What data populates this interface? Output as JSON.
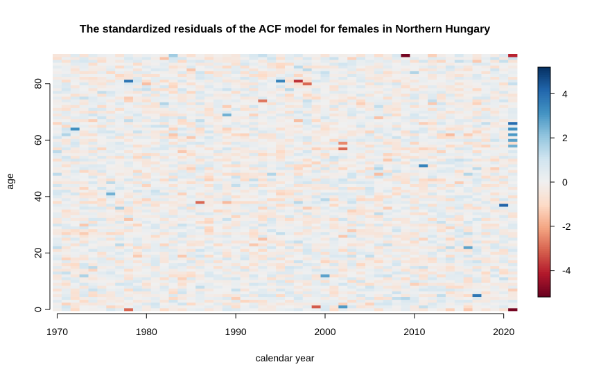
{
  "chart_data": {
    "type": "heatmap",
    "title": "The standardized residuals of the ACF model for females in Northern Hungary",
    "xlabel": "calendar year",
    "ylabel": "age",
    "x_range": [
      1970,
      2021
    ],
    "y_range": [
      0,
      90
    ],
    "xlim": [
      1969.5,
      2021.5
    ],
    "ylim": [
      -0.5,
      90.5
    ],
    "x_ticks": [
      1970,
      1980,
      1990,
      2000,
      2010,
      2020
    ],
    "y_ticks": [
      0,
      20,
      40,
      60,
      80
    ],
    "colorbar": {
      "range": [
        -5.2,
        5.2
      ],
      "ticks": [
        -4,
        -2,
        0,
        2,
        4
      ],
      "palette": [
        "#67001f",
        "#b2182b",
        "#d6604d",
        "#f4a582",
        "#fddbc7",
        "#f0f0f0",
        "#d1e5f0",
        "#92c5de",
        "#4393c3",
        "#2166ac",
        "#053061"
      ]
    },
    "notable_cells": [
      {
        "year": 2009,
        "age": 90,
        "value": -5.0
      },
      {
        "year": 2021,
        "age": 90,
        "value": -4.0
      },
      {
        "year": 2021,
        "age": 0,
        "value": -5.0
      },
      {
        "year": 1978,
        "age": 0,
        "value": -3.0
      },
      {
        "year": 1972,
        "age": 64,
        "value": 3.2
      },
      {
        "year": 1978,
        "age": 81,
        "value": 3.8
      },
      {
        "year": 1995,
        "age": 81,
        "value": 3.5
      },
      {
        "year": 1997,
        "age": 81,
        "value": -3.8
      },
      {
        "year": 1998,
        "age": 80,
        "value": -3.0
      },
      {
        "year": 2002,
        "age": 57,
        "value": -3.0
      },
      {
        "year": 2002,
        "age": 59,
        "value": -2.5
      },
      {
        "year": 2011,
        "age": 51,
        "value": 3.5
      },
      {
        "year": 2017,
        "age": 5,
        "value": 3.8
      },
      {
        "year": 2020,
        "age": 37,
        "value": 4.2
      },
      {
        "year": 2016,
        "age": 22,
        "value": 2.8
      },
      {
        "year": 2021,
        "age": 66,
        "value": 4.0
      },
      {
        "year": 2021,
        "age": 64,
        "value": 3.2
      },
      {
        "year": 2021,
        "age": 62,
        "value": 3.0
      },
      {
        "year": 2021,
        "age": 60,
        "value": 2.8
      },
      {
        "year": 2021,
        "age": 58,
        "value": 2.5
      },
      {
        "year": 2002,
        "age": 1,
        "value": 3.0
      },
      {
        "year": 2000,
        "age": 12,
        "value": 2.8
      },
      {
        "year": 1999,
        "age": 1,
        "value": -3.2
      },
      {
        "year": 1976,
        "age": 41,
        "value": 2.5
      },
      {
        "year": 1986,
        "age": 38,
        "value": -3.0
      },
      {
        "year": 1989,
        "age": 69,
        "value": 2.5
      },
      {
        "year": 1993,
        "age": 74,
        "value": -2.8
      }
    ]
  }
}
